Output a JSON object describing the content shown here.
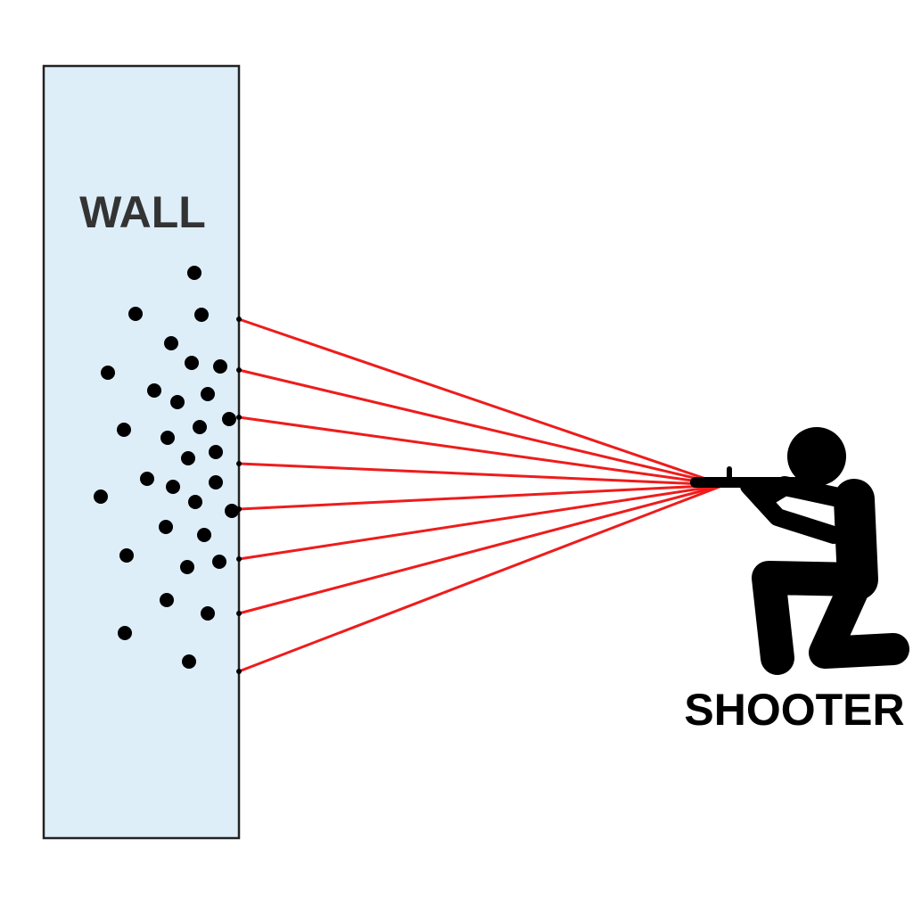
{
  "wall": {
    "label": "WALL",
    "fill": "#ddeef9",
    "stroke": "#222222"
  },
  "shooter": {
    "label": "SHOOTER",
    "color": "#000000"
  },
  "ray_color": "#ee1c1c",
  "hole_color": "#000000"
}
